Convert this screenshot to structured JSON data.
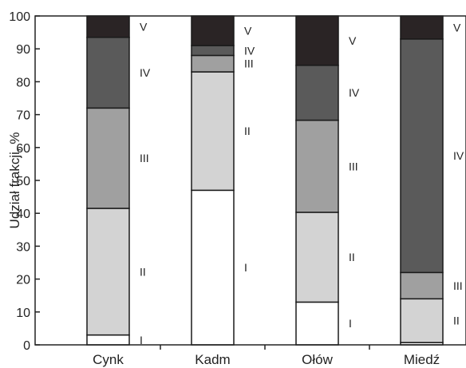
{
  "chart_data": {
    "type": "bar",
    "stacked": true,
    "ylabel": "Udział frakcji, %",
    "xlabel": "",
    "ylim": [
      0,
      100
    ],
    "yticks": [
      0,
      10,
      20,
      30,
      40,
      50,
      60,
      70,
      80,
      90,
      100
    ],
    "categories": [
      "Cynk",
      "Kadm",
      "Ołów",
      "Miedź"
    ],
    "series": [
      {
        "name": "I",
        "color": "#ffffff",
        "values": [
          3,
          47,
          13,
          0.7
        ]
      },
      {
        "name": "II",
        "color": "#d3d3d3",
        "values": [
          38.5,
          36,
          27.3,
          13.3
        ]
      },
      {
        "name": "III",
        "color": "#a0a0a0",
        "values": [
          30.5,
          5,
          28,
          8
        ]
      },
      {
        "name": "IV",
        "color": "#5a5a5a",
        "values": [
          21.5,
          3,
          16.7,
          71
        ]
      },
      {
        "name": "V",
        "color": "#2a2425",
        "values": [
          6.5,
          9,
          15,
          7
        ]
      }
    ],
    "grid": false,
    "legend": "none"
  }
}
